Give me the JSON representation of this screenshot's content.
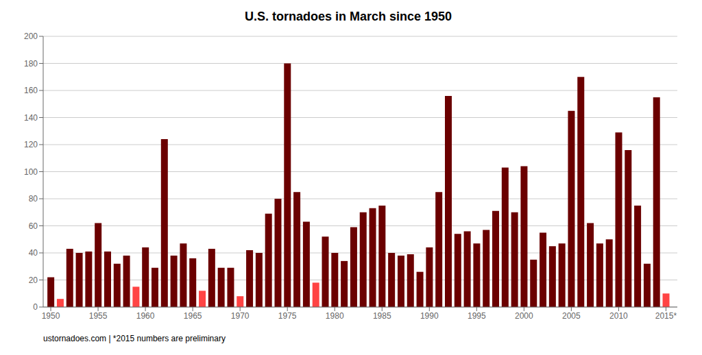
{
  "chart_data": {
    "type": "bar",
    "title": "U.S. tornadoes in March since 1950",
    "x": [
      1950,
      1951,
      1952,
      1953,
      1954,
      1955,
      1956,
      1957,
      1958,
      1959,
      1960,
      1961,
      1962,
      1963,
      1964,
      1965,
      1966,
      1967,
      1968,
      1969,
      1970,
      1971,
      1972,
      1973,
      1974,
      1975,
      1976,
      1977,
      1978,
      1979,
      1980,
      1981,
      1982,
      1983,
      1984,
      1985,
      1986,
      1987,
      1988,
      1989,
      1990,
      1991,
      1992,
      1993,
      1994,
      1995,
      1996,
      1997,
      1998,
      1999,
      2000,
      2001,
      2002,
      2003,
      2004,
      2005,
      2006,
      2007,
      2008,
      2009,
      2010,
      2011,
      2012,
      2013,
      2014,
      2015
    ],
    "values": [
      22,
      6,
      43,
      40,
      41,
      62,
      41,
      32,
      38,
      15,
      44,
      29,
      124,
      38,
      47,
      36,
      12,
      43,
      29,
      29,
      8,
      42,
      40,
      69,
      80,
      180,
      85,
      63,
      18,
      52,
      40,
      34,
      59,
      70,
      73,
      75,
      40,
      38,
      39,
      26,
      44,
      85,
      156,
      54,
      56,
      47,
      57,
      71,
      103,
      70,
      104,
      35,
      55,
      45,
      47,
      145,
      170,
      62,
      47,
      50,
      129,
      116,
      75,
      32,
      155,
      10
    ],
    "colors": [
      "#6B0000",
      "#FF4444",
      "#6B0000",
      "#6B0000",
      "#6B0000",
      "#6B0000",
      "#6B0000",
      "#6B0000",
      "#6B0000",
      "#FF4444",
      "#6B0000",
      "#6B0000",
      "#6B0000",
      "#6B0000",
      "#6B0000",
      "#6B0000",
      "#FF4444",
      "#6B0000",
      "#6B0000",
      "#6B0000",
      "#FF4444",
      "#6B0000",
      "#6B0000",
      "#6B0000",
      "#6B0000",
      "#6B0000",
      "#6B0000",
      "#6B0000",
      "#FF4444",
      "#6B0000",
      "#6B0000",
      "#6B0000",
      "#6B0000",
      "#6B0000",
      "#6B0000",
      "#6B0000",
      "#6B0000",
      "#6B0000",
      "#6B0000",
      "#6B0000",
      "#6B0000",
      "#6B0000",
      "#6B0000",
      "#6B0000",
      "#6B0000",
      "#6B0000",
      "#6B0000",
      "#6B0000",
      "#6B0000",
      "#6B0000",
      "#6B0000",
      "#6B0000",
      "#6B0000",
      "#6B0000",
      "#6B0000",
      "#6B0000",
      "#6B0000",
      "#6B0000",
      "#6B0000",
      "#6B0000",
      "#6B0000",
      "#6B0000",
      "#6B0000",
      "#6B0000",
      "#6B0000",
      "#FF4444"
    ],
    "xlim": [
      1949.2,
      2016.2
    ],
    "xticks": [
      1950,
      1955,
      1960,
      1965,
      1970,
      1975,
      1980,
      1985,
      1990,
      1995,
      2000,
      2005,
      2010,
      {
        "value": 2015,
        "label": "2015*"
      }
    ],
    "ylim": [
      0,
      200
    ],
    "yticks": [
      0,
      20,
      40,
      60,
      80,
      100,
      120,
      140,
      160,
      180,
      200
    ],
    "grid": true,
    "annotations": [
      "ustornadoes.com | *2015 numbers are preliminary"
    ]
  }
}
